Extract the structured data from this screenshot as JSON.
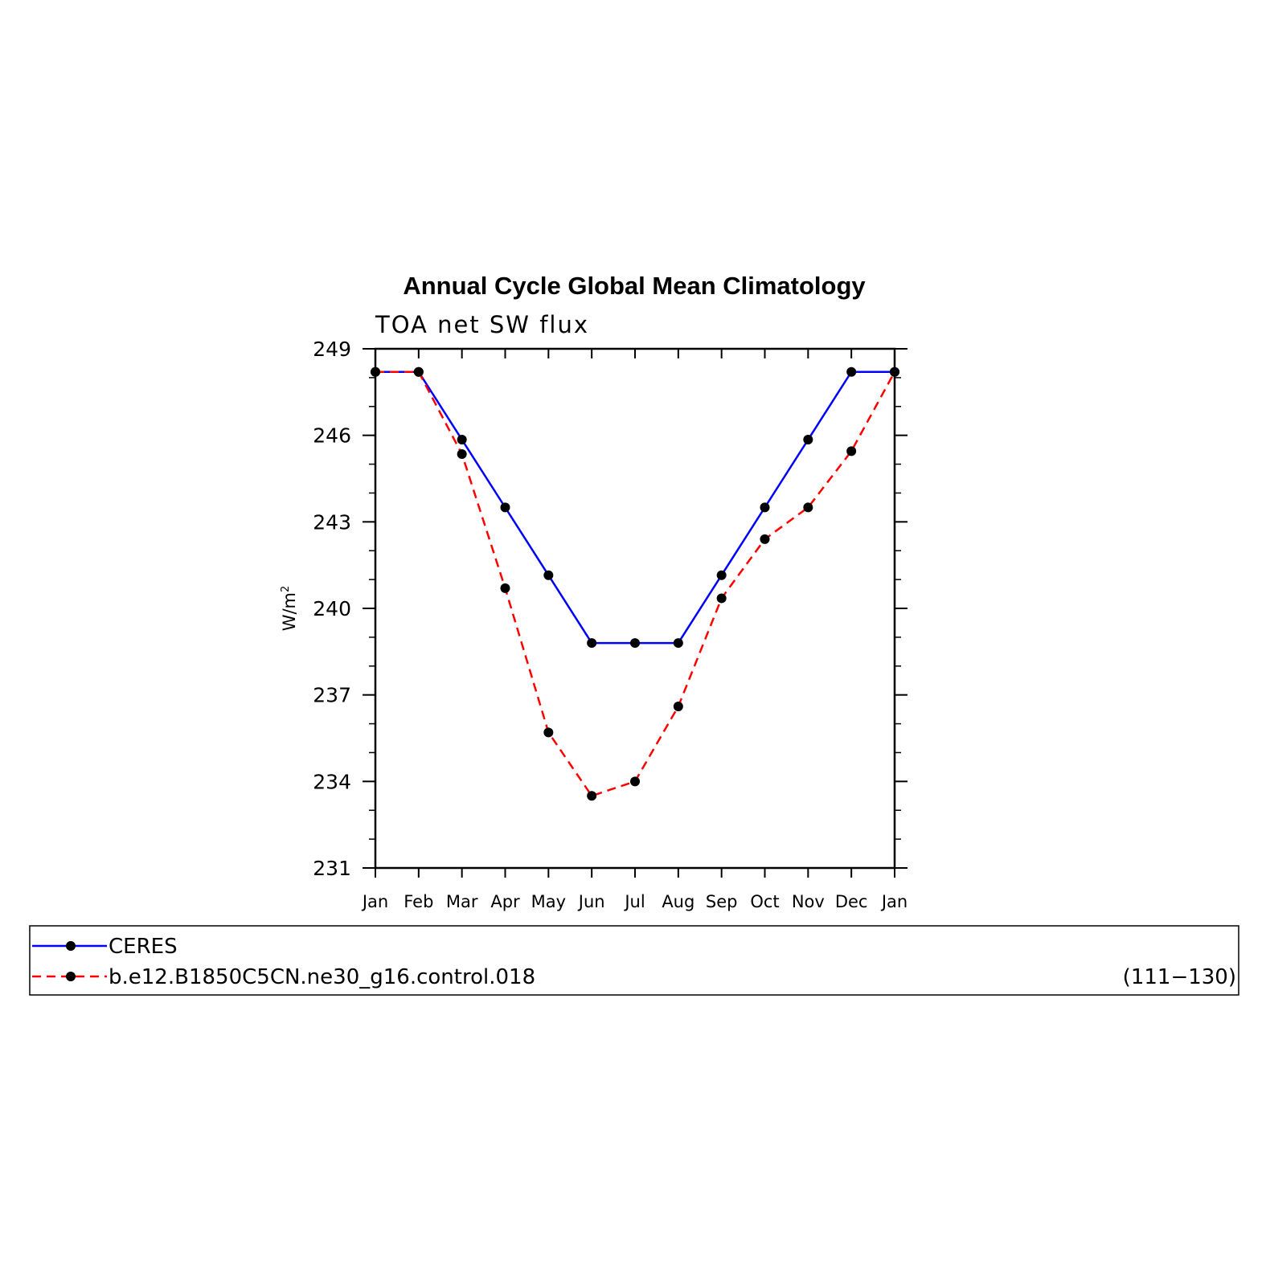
{
  "chart_data": {
    "type": "line",
    "title": "Annual Cycle Global Mean Climatology",
    "subtitle": "TOA net SW flux",
    "ylabel": "W/m",
    "ylabel_superscript": "2",
    "ylim": [
      231,
      249
    ],
    "yticks": [
      "231",
      "234",
      "237",
      "240",
      "243",
      "246",
      "249"
    ],
    "categories": [
      "Jan",
      "Feb",
      "Mar",
      "Apr",
      "May",
      "Jun",
      "Jul",
      "Aug",
      "Sep",
      "Oct",
      "Nov",
      "Dec",
      "Jan"
    ],
    "series": [
      {
        "name": "CERES",
        "color": "#0000ff",
        "dashed": false,
        "values": [
          248.2,
          248.2,
          245.85,
          243.5,
          241.15,
          238.8,
          238.8,
          238.8,
          241.15,
          243.5,
          245.85,
          248.2,
          248.2
        ]
      },
      {
        "name": "b.e12.B1850C5CN.ne30_g16.control.018",
        "color": "#ff0000",
        "dashed": true,
        "values": [
          248.2,
          248.2,
          245.35,
          240.7,
          235.7,
          233.5,
          234.0,
          236.6,
          240.35,
          242.4,
          243.5,
          245.45,
          248.2
        ]
      }
    ],
    "legend_note": "(111−130)",
    "legend_position": "below",
    "grid": false
  }
}
